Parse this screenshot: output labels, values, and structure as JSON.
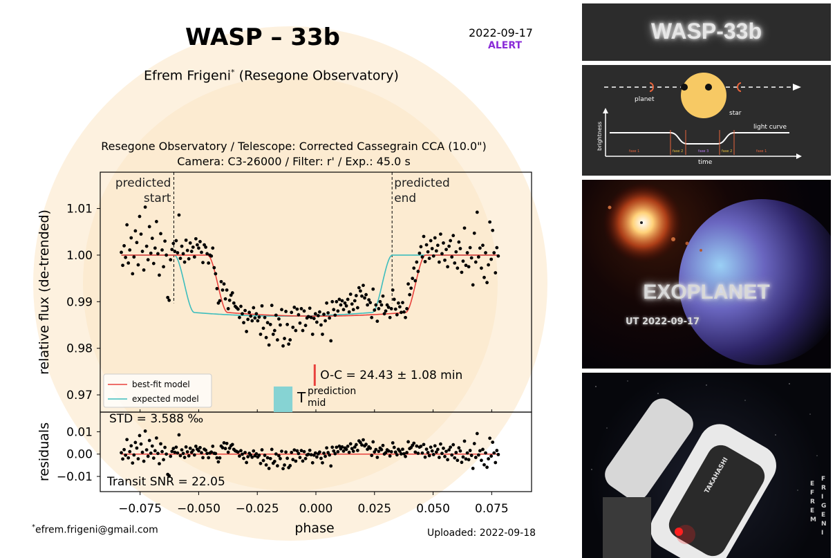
{
  "header": {
    "title": "WASP – 33b",
    "date": "2022-09-17",
    "alert": "ALERT",
    "author": "Efrem Frigeni",
    "author_mark": "*",
    "observatory": "(Resegone Observatory)",
    "instrument_line1": "Resegone Observatory / Telescope: Corrected Cassegrain CCA (10.0\")",
    "instrument_line2": "Camera: C3-26000 / Filter: r' / Exp.: 45.0 s"
  },
  "footer": {
    "email": "efrem.frigeni@gmail.com",
    "email_mark": "*",
    "uploaded": "Uploaded: 2022-09-18"
  },
  "chart_data": {
    "type": "scatter",
    "xlabel": "phase",
    "ylabel": "relative flux (de-trended)",
    "ylabel_residuals": "residuals",
    "xlim": [
      -0.092,
      0.092
    ],
    "ylim": [
      0.9663,
      1.0178
    ],
    "ylim_residuals": [
      -0.0168,
      0.0188
    ],
    "xticks": [
      "−0.075",
      "−0.050",
      "−0.025",
      "0.000",
      "0.025",
      "0.050",
      "0.075"
    ],
    "xtick_values": [
      -0.075,
      -0.05,
      -0.025,
      0,
      0.025,
      0.05,
      0.075
    ],
    "yticks": [
      "0.97",
      "0.98",
      "0.99",
      "1.00",
      "1.01"
    ],
    "ytick_values": [
      0.97,
      0.98,
      0.99,
      1.0,
      1.01
    ],
    "residual_yticks": [
      "−0.01",
      "0.00",
      "0.01"
    ],
    "residual_ytick_values": [
      -0.01,
      0,
      0.01
    ],
    "predicted_start": {
      "phase": -0.0606,
      "label_top": "predicted",
      "label_bottom": "start"
    },
    "predicted_end": {
      "phase": 0.0325,
      "label_top": "predicted",
      "label_bottom": "end"
    },
    "oc_label": "O-C = 24.43 ± 1.08 min",
    "oc_marker_phase": -0.0005,
    "t_mid": {
      "letter": "T",
      "superscript": "prediction",
      "subscript": "mid",
      "phase_range": [
        -0.018,
        -0.01
      ],
      "color": "#86d3d3"
    },
    "std_label": "STD = 3.588 ‰",
    "snr_label": "Transit SNR = 22.05",
    "legend": [
      {
        "name": "best-fit model",
        "color": "#e8413c"
      },
      {
        "name": "expected model",
        "color": "#3cbdbd"
      }
    ],
    "depth": 0.0131,
    "best_fit_model": {
      "center": 0.0003,
      "half_duration": 0.0465,
      "ingress": 0.0085
    },
    "expected_model": {
      "center": -0.0139,
      "half_duration": 0.0465,
      "ingress": 0.0085
    },
    "residual_model_value": 0.0,
    "points": [
      [
        -0.083,
        1.0006
      ],
      [
        -0.0824,
        0.9978
      ],
      [
        -0.0818,
        1.002
      ],
      [
        -0.0812,
        0.9995
      ],
      [
        -0.0806,
        1.0065
      ],
      [
        -0.08,
        0.9983
      ],
      [
        -0.0794,
        1.0011
      ],
      [
        -0.0788,
        1.0037
      ],
      [
        -0.0782,
        0.996
      ],
      [
        -0.0776,
        0.9996
      ],
      [
        -0.077,
        1.0052
      ],
      [
        -0.0764,
        1.0027
      ],
      [
        -0.0758,
        0.9979
      ],
      [
        -0.0752,
        1.0083
      ],
      [
        -0.0746,
        1.0045
      ],
      [
        -0.074,
        1.0008
      ],
      [
        -0.0734,
        0.9968
      ],
      [
        -0.0728,
        1.0103
      ],
      [
        -0.0722,
        1.0019
      ],
      [
        -0.0716,
        0.999
      ],
      [
        -0.071,
        1.0061
      ],
      [
        -0.0704,
        1.0004
      ],
      [
        -0.0698,
        1.0036
      ],
      [
        -0.0692,
        0.9982
      ],
      [
        -0.0686,
        1.0015
      ],
      [
        -0.068,
        1.0072
      ],
      [
        -0.0674,
        1.0003
      ],
      [
        -0.0668,
        0.9957
      ],
      [
        -0.0662,
        1.0046
      ],
      [
        -0.0656,
        1.0011
      ],
      [
        -0.065,
        0.9975
      ],
      [
        -0.0644,
        1.003
      ],
      [
        -0.0638,
        1.0
      ],
      [
        -0.0632,
        0.9909
      ],
      [
        -0.0626,
        0.9903
      ],
      [
        -0.062,
        0.999
      ],
      [
        -0.0614,
        1.0012
      ],
      [
        -0.0608,
        1.0025
      ],
      [
        -0.0602,
        1.0008
      ],
      [
        -0.0596,
        1.0031
      ],
      [
        -0.059,
        1.0005
      ],
      [
        -0.0584,
        1.0086
      ],
      [
        -0.0578,
        0.9993
      ],
      [
        -0.0572,
        1.0019
      ],
      [
        -0.0566,
        1.0003
      ],
      [
        -0.056,
        0.9985
      ],
      [
        -0.0554,
        1.0032
      ],
      [
        -0.0548,
        1.001
      ],
      [
        -0.0542,
        0.9992
      ],
      [
        -0.0536,
        1.0026
      ],
      [
        -0.053,
        1.0008
      ],
      [
        -0.0524,
        1.0017
      ],
      [
        -0.0518,
        0.9996
      ],
      [
        -0.0512,
        1.0035
      ],
      [
        -0.0506,
        1.0022
      ],
      [
        -0.05,
        1.0015
      ],
      [
        -0.0494,
        1.0029
      ],
      [
        -0.0488,
        1.0006
      ],
      [
        -0.0482,
        0.9984
      ],
      [
        -0.0476,
        1.0022
      ],
      [
        -0.047,
        1.0017
      ],
      [
        -0.0464,
        1.0003
      ],
      [
        -0.0458,
        0.9983
      ],
      [
        -0.0452,
        1.0
      ],
      [
        -0.0446,
        0.9998
      ],
      [
        -0.044,
        1.0015
      ],
      [
        -0.0434,
        0.9973
      ],
      [
        -0.0428,
        0.996
      ],
      [
        -0.0422,
        0.9928
      ],
      [
        -0.0416,
        0.9897
      ],
      [
        -0.041,
        0.9902
      ],
      [
        -0.0404,
        0.9943
      ],
      [
        -0.0398,
        0.9925
      ],
      [
        -0.0392,
        0.9938
      ],
      [
        -0.0386,
        0.9906
      ],
      [
        -0.038,
        0.9925
      ],
      [
        -0.0374,
        0.9885
      ],
      [
        -0.0368,
        0.9903
      ],
      [
        -0.0362,
        0.9914
      ],
      [
        -0.0356,
        0.9919
      ],
      [
        -0.035,
        0.9897
      ],
      [
        -0.0344,
        0.989
      ],
      [
        -0.0338,
        0.9887
      ],
      [
        -0.0332,
        0.9884
      ],
      [
        -0.0326,
        0.9866
      ],
      [
        -0.032,
        0.989
      ],
      [
        -0.0314,
        0.9874
      ],
      [
        -0.0308,
        0.9855
      ],
      [
        -0.0302,
        0.9881
      ],
      [
        -0.0296,
        0.9836
      ],
      [
        -0.029,
        0.9862
      ],
      [
        -0.0284,
        0.9877
      ],
      [
        -0.0278,
        0.9869
      ],
      [
        -0.0272,
        0.9859
      ],
      [
        -0.0266,
        0.9887
      ],
      [
        -0.026,
        0.9865
      ],
      [
        -0.0254,
        0.9874
      ],
      [
        -0.0248,
        0.9859
      ],
      [
        -0.0242,
        0.9867
      ],
      [
        -0.0236,
        0.983
      ],
      [
        -0.023,
        0.9891
      ],
      [
        -0.0224,
        0.9843
      ],
      [
        -0.0218,
        0.9866
      ],
      [
        -0.0212,
        0.9823
      ],
      [
        -0.0206,
        0.9855
      ],
      [
        -0.02,
        0.9807
      ],
      [
        -0.0194,
        0.9851
      ],
      [
        -0.0188,
        0.9892
      ],
      [
        -0.0182,
        0.983
      ],
      [
        -0.0176,
        0.9838
      ],
      [
        -0.017,
        0.9871
      ],
      [
        -0.0164,
        0.9818
      ],
      [
        -0.0158,
        0.9863
      ],
      [
        -0.0152,
        0.985
      ],
      [
        -0.0146,
        0.9883
      ],
      [
        -0.014,
        0.9805
      ],
      [
        -0.0134,
        0.9821
      ],
      [
        -0.0128,
        0.9879
      ],
      [
        -0.0122,
        0.9851
      ],
      [
        -0.0116,
        0.9809
      ],
      [
        -0.011,
        0.9818
      ],
      [
        -0.0104,
        0.9877
      ],
      [
        -0.0098,
        0.9845
      ],
      [
        -0.0092,
        0.9888
      ],
      [
        -0.0086,
        0.9838
      ],
      [
        -0.008,
        0.9884
      ],
      [
        -0.0074,
        0.9872
      ],
      [
        -0.0068,
        0.9854
      ],
      [
        -0.0062,
        0.9885
      ],
      [
        -0.0056,
        0.9838
      ],
      [
        -0.005,
        0.988
      ],
      [
        -0.0044,
        0.9849
      ],
      [
        -0.0038,
        0.9865
      ],
      [
        -0.0032,
        0.9868
      ],
      [
        -0.0026,
        0.9886
      ],
      [
        -0.002,
        0.9866
      ],
      [
        -0.0014,
        0.983
      ],
      [
        -0.0008,
        0.9864
      ],
      [
        -0.0002,
        0.9874
      ],
      [
        0.0004,
        0.9856
      ],
      [
        0.001,
        0.987
      ],
      [
        0.0016,
        0.9878
      ],
      [
        0.0022,
        0.985
      ],
      [
        0.0028,
        0.983
      ],
      [
        0.0034,
        0.9873
      ],
      [
        0.004,
        0.9859
      ],
      [
        0.0046,
        0.9897
      ],
      [
        0.0052,
        0.9876
      ],
      [
        0.0058,
        0.9865
      ],
      [
        0.0064,
        0.9816
      ],
      [
        0.007,
        0.99
      ],
      [
        0.0076,
        0.9883
      ],
      [
        0.0082,
        0.9871
      ],
      [
        0.0088,
        0.99
      ],
      [
        0.0094,
        0.988
      ],
      [
        0.01,
        0.9905
      ],
      [
        0.0106,
        0.9893
      ],
      [
        0.0112,
        0.9902
      ],
      [
        0.0118,
        0.9883
      ],
      [
        0.0124,
        0.9897
      ],
      [
        0.013,
        0.9891
      ],
      [
        0.0136,
        0.9905
      ],
      [
        0.0142,
        0.9878
      ],
      [
        0.0148,
        0.9916
      ],
      [
        0.0154,
        0.9895
      ],
      [
        0.016,
        0.9883
      ],
      [
        0.0166,
        0.9902
      ],
      [
        0.0172,
        0.9913
      ],
      [
        0.0178,
        0.9887
      ],
      [
        0.0184,
        0.993
      ],
      [
        0.019,
        0.9923
      ],
      [
        0.0196,
        0.9912
      ],
      [
        0.0202,
        0.9935
      ],
      [
        0.0208,
        0.9908
      ],
      [
        0.0214,
        0.9915
      ],
      [
        0.022,
        0.9893
      ],
      [
        0.0226,
        0.9904
      ],
      [
        0.0232,
        0.9898
      ],
      [
        0.0238,
        0.9866
      ],
      [
        0.0244,
        0.9927
      ],
      [
        0.025,
        0.9882
      ],
      [
        0.0256,
        0.9893
      ],
      [
        0.0262,
        0.9858
      ],
      [
        0.0268,
        0.9885
      ],
      [
        0.0274,
        0.99
      ],
      [
        0.028,
        0.9893
      ],
      [
        0.0286,
        0.9912
      ],
      [
        0.0292,
        0.9874
      ],
      [
        0.0298,
        0.988
      ],
      [
        0.0304,
        0.9893
      ],
      [
        0.031,
        0.9888
      ],
      [
        0.0316,
        0.9866
      ],
      [
        0.0322,
        0.9885
      ],
      [
        0.0328,
        0.9925
      ],
      [
        0.0334,
        0.9905
      ],
      [
        0.034,
        0.9884
      ],
      [
        0.0346,
        0.9872
      ],
      [
        0.0352,
        0.9897
      ],
      [
        0.0358,
        0.9889
      ],
      [
        0.0364,
        0.9877
      ],
      [
        0.037,
        0.9898
      ],
      [
        0.0376,
        0.9878
      ],
      [
        0.0382,
        0.9866
      ],
      [
        0.0388,
        0.9885
      ],
      [
        0.0394,
        0.9938
      ],
      [
        0.04,
        0.9915
      ],
      [
        0.0406,
        0.9929
      ],
      [
        0.0412,
        0.995
      ],
      [
        0.0418,
        0.9972
      ],
      [
        0.0424,
        0.9945
      ],
      [
        0.043,
        0.9985
      ],
      [
        0.0436,
        0.9965
      ],
      [
        0.0442,
        1.0004
      ],
      [
        0.0448,
        1.0018
      ],
      [
        0.0454,
        0.9996
      ],
      [
        0.046,
        1.004
      ],
      [
        0.0466,
        0.9986
      ],
      [
        0.0472,
        1.0022
      ],
      [
        0.0478,
        1.0007
      ],
      [
        0.0484,
        0.9993
      ],
      [
        0.049,
        1.0031
      ],
      [
        0.0496,
        1.0014
      ],
      [
        0.0502,
        0.9998
      ],
      [
        0.0508,
        1.0037
      ],
      [
        0.0514,
        1.0009
      ],
      [
        0.052,
        1.0021
      ],
      [
        0.0526,
        0.9985
      ],
      [
        0.0532,
        1.0045
      ],
      [
        0.0538,
        1.0003
      ],
      [
        0.0544,
        1.0026
      ],
      [
        0.055,
        0.9989
      ],
      [
        0.0556,
        1.0012
      ],
      [
        0.0562,
        0.9975
      ],
      [
        0.0568,
        1.0019
      ],
      [
        0.0574,
        1.0031
      ],
      [
        0.058,
        0.9996
      ],
      [
        0.0586,
        1.0042
      ],
      [
        0.0592,
        0.9983
      ],
      [
        0.0598,
        1.0007
      ],
      [
        0.0604,
        0.9972
      ],
      [
        0.061,
        1.0028
      ],
      [
        0.0616,
        1.0014
      ],
      [
        0.0622,
        0.9963
      ],
      [
        0.0628,
        0.9987
      ],
      [
        0.0634,
        1.0058
      ],
      [
        0.064,
        0.9978
      ],
      [
        0.0646,
        1.0005
      ],
      [
        0.0652,
        0.9975
      ],
      [
        0.0658,
        1.0016
      ],
      [
        0.0664,
        0.9994
      ],
      [
        0.067,
        0.9936
      ],
      [
        0.0676,
        1.0047
      ],
      [
        0.0682,
        0.9985
      ],
      [
        0.0688,
        1.0092
      ],
      [
        0.0694,
        0.9996
      ],
      [
        0.07,
        1.0015
      ],
      [
        0.0706,
        0.9972
      ],
      [
        0.0712,
        1.0021
      ],
      [
        0.0718,
        0.9952
      ],
      [
        0.0724,
        1.0005
      ],
      [
        0.073,
        0.9941
      ],
      [
        0.0736,
        0.9979
      ],
      [
        0.0742,
        1.0071
      ],
      [
        0.0748,
        0.9991
      ],
      [
        0.0754,
        1.0053
      ],
      [
        0.076,
        1.0005
      ],
      [
        0.0766,
        0.9962
      ],
      [
        0.0772,
        1.0016
      ],
      [
        0.0778,
        0.9998
      ]
    ]
  },
  "panels": {
    "wasp_title": "WASP-33b",
    "diagram": {
      "planet": "planet",
      "star": "star",
      "light_curve": "light curve",
      "brightness": "brightness",
      "time": "time",
      "phase1": "fase 1",
      "phase2": "fase 2",
      "phase3": "fase 3",
      "phase2b": "fase 2",
      "phase1b": "fase 1"
    },
    "exoplanet": "EXOPLANET",
    "ut_date": "UT 2022-09-17",
    "telescope_brand": "TAKAHASHI",
    "vertical_name_1": "EFREM",
    "vertical_name_2": "FRIGENI"
  }
}
